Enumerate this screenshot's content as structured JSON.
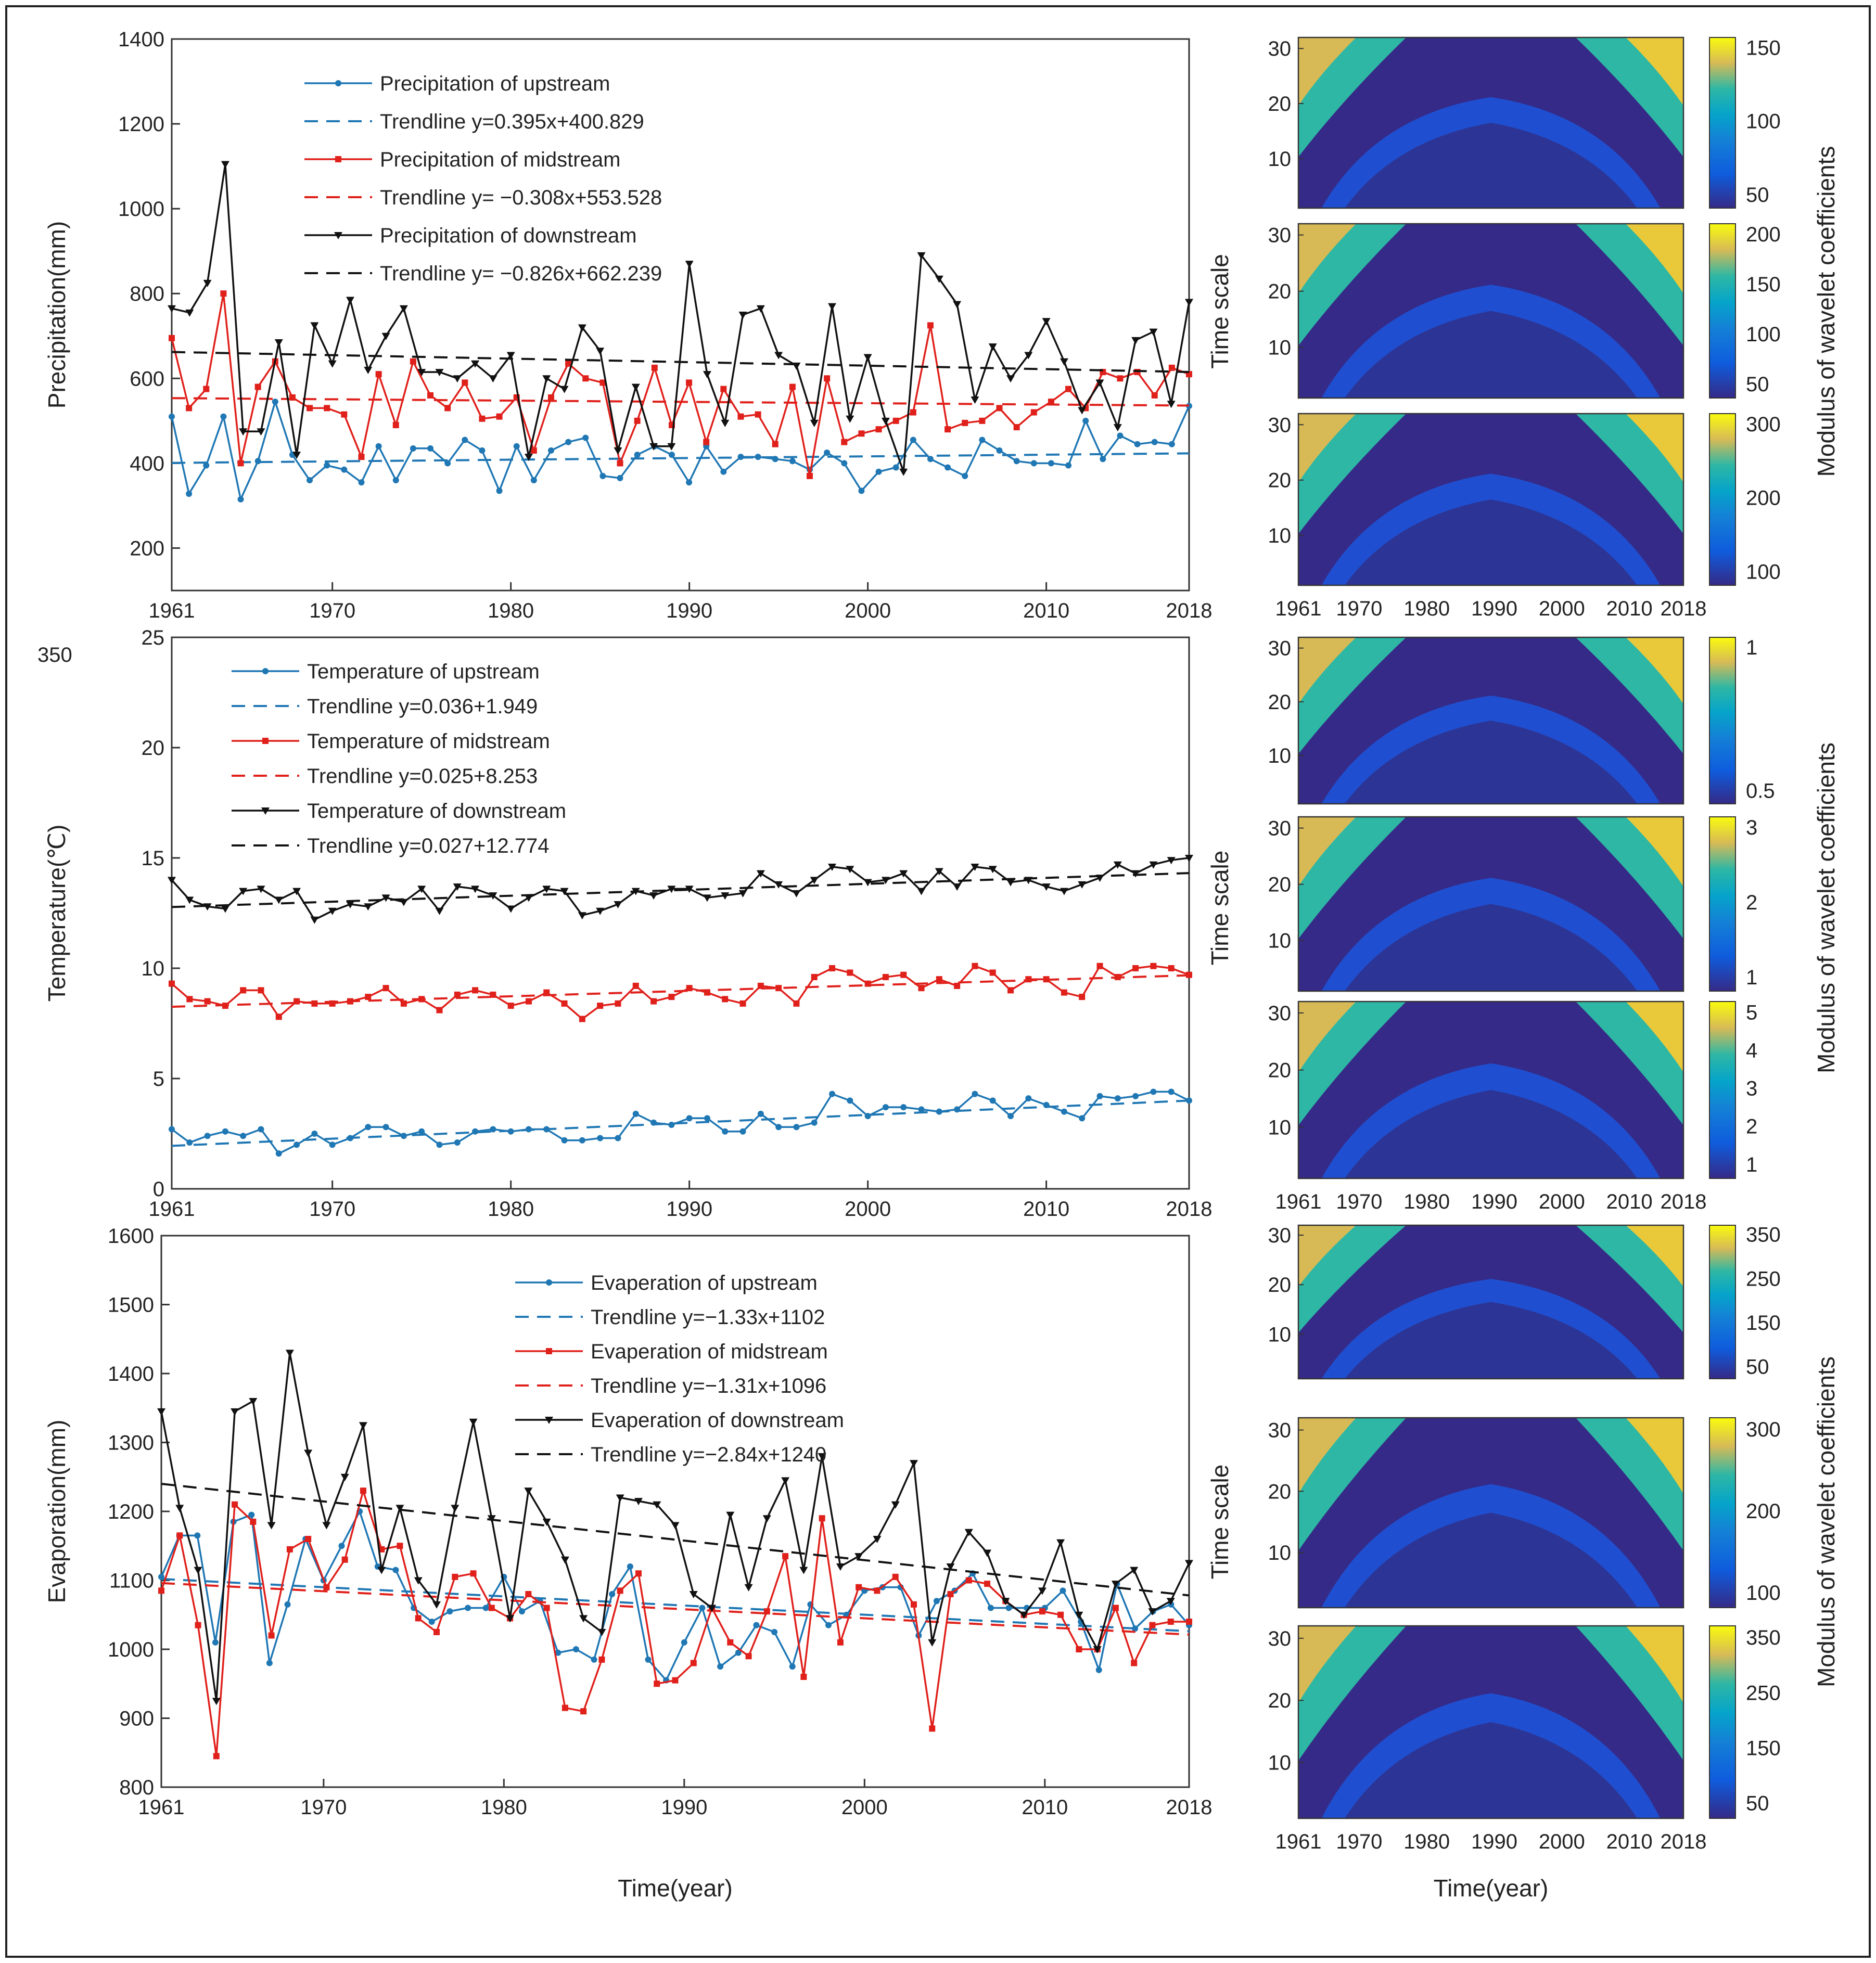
{
  "shared": {
    "x_ticks": [
      "1961",
      "1970",
      "1980",
      "1990",
      "2000",
      "2010",
      "2018"
    ],
    "time_label": "Time(year)",
    "time_scale_label": "Time scale",
    "wavelet_label": "Modulus of wavelet coefficients",
    "stray_text": "350"
  },
  "chart_data": [
    {
      "type": "line",
      "ylabel": "Precipitation(mm)",
      "ylim": [
        100,
        1400
      ],
      "yticks": [
        200,
        400,
        600,
        800,
        1000,
        1200,
        1400
      ],
      "legend_position": "upper-left",
      "series": [
        {
          "name": "Precipitation of upstream",
          "color": "#1f77b4",
          "marker": "dot",
          "values": [
            510,
            328,
            395,
            510,
            315,
            405,
            545,
            420,
            360,
            395,
            385,
            355,
            440,
            360,
            435,
            435,
            400,
            455,
            430,
            335,
            440,
            360,
            430,
            450,
            460,
            370,
            365,
            420,
            440,
            420,
            355,
            440,
            380,
            415,
            415,
            410,
            405,
            385,
            425,
            400,
            335,
            380,
            390,
            455,
            410,
            390,
            370,
            455,
            430,
            405,
            400,
            400,
            395,
            500,
            410,
            465,
            445,
            450,
            445,
            535
          ]
        },
        {
          "name": "Trendline y=0.395x+400.829",
          "color": "#1f77b4",
          "dashed": true,
          "trend": [
            0.395,
            400.829
          ]
        },
        {
          "name": "Precipitation of midstream",
          "color": "#e0201b",
          "marker": "square",
          "values": [
            695,
            530,
            575,
            800,
            400,
            580,
            640,
            555,
            530,
            530,
            515,
            415,
            610,
            490,
            640,
            560,
            530,
            590,
            505,
            510,
            555,
            430,
            555,
            635,
            600,
            590,
            400,
            500,
            625,
            490,
            590,
            450,
            575,
            510,
            515,
            445,
            580,
            370,
            600,
            450,
            470,
            480,
            500,
            520,
            725,
            480,
            495,
            500,
            530,
            485,
            520,
            545,
            575,
            530,
            615,
            600,
            615,
            560,
            625,
            610
          ]
        },
        {
          "name": "Trendline y= −0.308x+553.528",
          "color": "#e0201b",
          "dashed": true,
          "trend": [
            -0.308,
            553.528
          ]
        },
        {
          "name": "Precipitation of downstream",
          "color": "#111111",
          "marker": "triangle-down",
          "values": [
            765,
            755,
            825,
            1105,
            475,
            475,
            685,
            420,
            725,
            635,
            785,
            620,
            700,
            765,
            615,
            615,
            600,
            635,
            600,
            655,
            415,
            600,
            575,
            720,
            665,
            430,
            580,
            440,
            440,
            870,
            610,
            495,
            750,
            765,
            655,
            630,
            495,
            770,
            505,
            650,
            500,
            380,
            890,
            835,
            775,
            550,
            675,
            600,
            655,
            735,
            640,
            525,
            590,
            485,
            690,
            710,
            540,
            780
          ]
        },
        {
          "name": "Trendline y= −0.826x+662.239",
          "color": "#111111",
          "dashed": true,
          "trend": [
            -0.826,
            662.239
          ]
        }
      ]
    },
    {
      "type": "line",
      "ylabel": "Temperature(℃)",
      "ylim": [
        0,
        25
      ],
      "yticks": [
        0,
        5,
        10,
        15,
        20,
        25
      ],
      "legend_position": "upper-left",
      "series": [
        {
          "name": "Temperature of upstream",
          "color": "#1f77b4",
          "marker": "dot",
          "values": [
            2.7,
            2.1,
            2.4,
            2.6,
            2.4,
            2.7,
            1.6,
            2.0,
            2.5,
            2.0,
            2.3,
            2.8,
            2.8,
            2.4,
            2.6,
            2.0,
            2.1,
            2.6,
            2.7,
            2.6,
            2.7,
            2.7,
            2.2,
            2.2,
            2.3,
            2.3,
            3.4,
            3.0,
            2.9,
            3.2,
            3.2,
            2.6,
            2.6,
            3.4,
            2.8,
            2.8,
            3.0,
            4.3,
            4.0,
            3.3,
            3.7,
            3.7,
            3.6,
            3.5,
            3.6,
            4.3,
            4.0,
            3.3,
            4.1,
            3.8,
            3.5,
            3.2,
            4.2,
            4.1,
            4.2,
            4.4,
            4.4,
            4.0
          ]
        },
        {
          "name": "Trendline y=0.036+1.949",
          "color": "#1f77b4",
          "dashed": true,
          "trend": [
            0.036,
            1.949
          ]
        },
        {
          "name": "Temperature of midstream",
          "color": "#e0201b",
          "marker": "square",
          "values": [
            9.3,
            8.6,
            8.5,
            8.3,
            9.0,
            9.0,
            7.8,
            8.5,
            8.4,
            8.4,
            8.5,
            8.7,
            9.1,
            8.4,
            8.6,
            8.1,
            8.8,
            9.0,
            8.8,
            8.3,
            8.5,
            8.9,
            8.4,
            7.7,
            8.3,
            8.4,
            9.2,
            8.5,
            8.7,
            9.1,
            8.9,
            8.6,
            8.4,
            9.2,
            9.1,
            8.4,
            9.6,
            10.0,
            9.8,
            9.3,
            9.6,
            9.7,
            9.1,
            9.5,
            9.2,
            10.1,
            9.8,
            9.0,
            9.5,
            9.5,
            8.9,
            8.7,
            10.1,
            9.6,
            10.0,
            10.1,
            10.0,
            9.7
          ]
        },
        {
          "name": "Trendline y=0.025+8.253",
          "color": "#e0201b",
          "dashed": true,
          "trend": [
            0.025,
            8.253
          ]
        },
        {
          "name": "Temperature of downstream",
          "color": "#111111",
          "marker": "triangle-down",
          "values": [
            14.0,
            13.1,
            12.8,
            12.7,
            13.5,
            13.6,
            13.1,
            13.5,
            12.2,
            12.6,
            12.9,
            12.8,
            13.2,
            13.0,
            13.6,
            12.6,
            13.7,
            13.6,
            13.3,
            12.7,
            13.2,
            13.6,
            13.5,
            12.4,
            12.6,
            12.9,
            13.5,
            13.3,
            13.6,
            13.6,
            13.2,
            13.3,
            13.4,
            14.3,
            13.8,
            13.4,
            14.0,
            14.6,
            14.5,
            13.9,
            14.0,
            14.3,
            13.5,
            14.4,
            13.7,
            14.6,
            14.5,
            13.9,
            14.0,
            13.7,
            13.5,
            13.8,
            14.1,
            14.7,
            14.3,
            14.7,
            14.9,
            15.0
          ]
        },
        {
          "name": "Trendline y=0.027+12.774",
          "color": "#111111",
          "dashed": true,
          "trend": [
            0.027,
            12.774
          ]
        }
      ]
    },
    {
      "type": "line",
      "ylabel": "Evaporation(mm)",
      "xlabel": "Time(year)",
      "ylim": [
        800,
        1600
      ],
      "yticks": [
        800,
        900,
        1000,
        1100,
        1200,
        1300,
        1400,
        1500,
        1600
      ],
      "legend_position": "upper-center",
      "series": [
        {
          "name": "Evaperation of upstream",
          "color": "#1f77b4",
          "marker": "dot",
          "values": [
            1105,
            1165,
            1165,
            1010,
            1185,
            1195,
            980,
            1065,
            1160,
            1100,
            1150,
            1200,
            1120,
            1115,
            1060,
            1040,
            1055,
            1060,
            1060,
            1105,
            1055,
            1070,
            995,
            1000,
            985,
            1080,
            1120,
            985,
            955,
            1010,
            1060,
            975,
            995,
            1035,
            1025,
            975,
            1065,
            1035,
            1050,
            1085,
            1090,
            1090,
            1020,
            1070,
            1085,
            1110,
            1060,
            1060,
            1060,
            1060,
            1085,
            1040,
            970,
            1095,
            1030,
            1055,
            1065,
            1035
          ]
        },
        {
          "name": "Trendline y=−1.33x+1102",
          "color": "#1f77b4",
          "dashed": true,
          "trend": [
            -1.33,
            1102
          ]
        },
        {
          "name": "Evaperation of midstream",
          "color": "#e0201b",
          "marker": "square",
          "values": [
            1085,
            1165,
            1035,
            845,
            1210,
            1185,
            1020,
            1145,
            1160,
            1090,
            1130,
            1230,
            1145,
            1150,
            1045,
            1025,
            1105,
            1110,
            1060,
            1045,
            1080,
            1060,
            915,
            910,
            985,
            1085,
            1110,
            950,
            955,
            980,
            1060,
            1010,
            990,
            1055,
            1135,
            960,
            1190,
            1010,
            1090,
            1085,
            1105,
            1065,
            885,
            1080,
            1100,
            1095,
            1070,
            1050,
            1055,
            1050,
            1000,
            1000,
            1060,
            980,
            1035,
            1040,
            1040
          ]
        },
        {
          "name": "Trendline y=−1.31x+1096",
          "color": "#e0201b",
          "dashed": true,
          "trend": [
            -1.31,
            1096
          ]
        },
        {
          "name": "Evaperation of downstream",
          "color": "#111111",
          "marker": "triangle-down",
          "values": [
            1345,
            1205,
            1115,
            925,
            1345,
            1360,
            1180,
            1430,
            1285,
            1180,
            1250,
            1325,
            1115,
            1205,
            1100,
            1065,
            1205,
            1330,
            1190,
            1045,
            1230,
            1185,
            1130,
            1045,
            1025,
            1220,
            1215,
            1210,
            1180,
            1080,
            1060,
            1195,
            1090,
            1190,
            1245,
            1115,
            1280,
            1120,
            1135,
            1160,
            1210,
            1270,
            1010,
            1120,
            1170,
            1140,
            1070,
            1050,
            1085,
            1155,
            1050,
            1000,
            1095,
            1115,
            1055,
            1070,
            1125
          ]
        },
        {
          "name": "Trendline y=−2.84x+1240",
          "color": "#111111",
          "dashed": true,
          "trend": [
            -2.84,
            1240
          ]
        }
      ]
    },
    {
      "type": "heatmap",
      "title": "",
      "ylabel": "Time scale",
      "yticks": [
        10,
        20,
        30
      ],
      "colorbar_ticks": [
        "150",
        "100",
        "50"
      ],
      "colorbar_label": "Modulus of wavelet coefficients"
    },
    {
      "type": "heatmap",
      "ylabel": "Time scale",
      "yticks": [
        10,
        20,
        30
      ],
      "colorbar_ticks": [
        "200",
        "150",
        "100",
        "50"
      ]
    },
    {
      "type": "heatmap",
      "ylabel": "Time scale",
      "yticks": [
        10,
        20,
        30
      ],
      "colorbar_ticks": [
        "300",
        "200",
        "100"
      ]
    },
    {
      "type": "heatmap",
      "ylabel": "Time scale",
      "yticks": [
        10,
        20,
        30
      ],
      "colorbar_ticks": [
        "1",
        "0.5"
      ]
    },
    {
      "type": "heatmap",
      "ylabel": "Time scale",
      "yticks": [
        10,
        20,
        30
      ],
      "colorbar_ticks": [
        "3",
        "2",
        "1"
      ]
    },
    {
      "type": "heatmap",
      "ylabel": "Time scale",
      "yticks": [
        10,
        20,
        30
      ],
      "colorbar_ticks": [
        "5",
        "4",
        "3",
        "2",
        "1"
      ]
    },
    {
      "type": "heatmap",
      "ylabel": "Time scale",
      "yticks": [
        10,
        20,
        30
      ],
      "colorbar_ticks": [
        "350",
        "250",
        "150",
        "50"
      ]
    },
    {
      "type": "heatmap",
      "ylabel": "Time scale",
      "yticks": [
        10,
        20,
        30
      ],
      "colorbar_ticks": [
        "300",
        "200",
        "100"
      ]
    },
    {
      "type": "heatmap",
      "ylabel": "Time scale",
      "yticks": [
        10,
        20,
        30
      ],
      "colorbar_ticks": [
        "350",
        "250",
        "150",
        "50"
      ]
    }
  ]
}
